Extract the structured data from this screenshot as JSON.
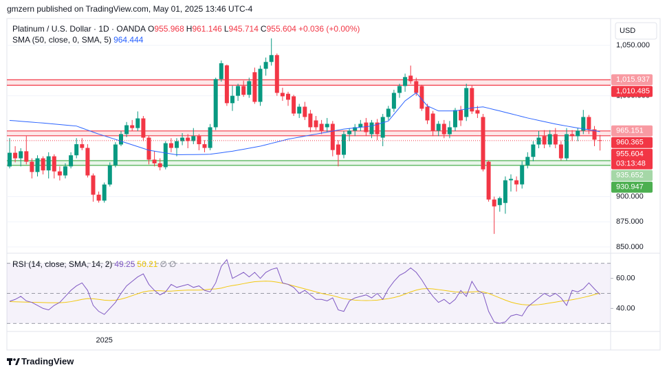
{
  "header": "gmzern published on TradingView.com, May 01, 2025 13:46 UTC-4",
  "brand": "TradingView",
  "chart_data": [
    {
      "type": "candlestick",
      "title": "Platinum / U.S. Dollar · 1D · OANDA",
      "ohlc_keys": [
        "O",
        "H",
        "L",
        "C"
      ],
      "change": "+0.036 (+0.00%)",
      "currency": "USD",
      "countdown": "03:13:48",
      "up_color": "#089981",
      "down_color": "#f23645",
      "categories": [
        null,
        null,
        null,
        null,
        null,
        null,
        null,
        null,
        null,
        null,
        null,
        null,
        null,
        null,
        null,
        null,
        null,
        "2025",
        null,
        null,
        null,
        null,
        null,
        null,
        null,
        null,
        null,
        null,
        null,
        null,
        null,
        null,
        null,
        null,
        null,
        null,
        null,
        null,
        null,
        null,
        null,
        null,
        null,
        null,
        null,
        null,
        null,
        null,
        null,
        null,
        null,
        null,
        null,
        null,
        null,
        null,
        null,
        null,
        null,
        null,
        null,
        null,
        null,
        null,
        null,
        null,
        null,
        null,
        null,
        null,
        null,
        null,
        null,
        null,
        null,
        null,
        null,
        null,
        null,
        null,
        null,
        null,
        null,
        null,
        null,
        null,
        null,
        null,
        null,
        null,
        null,
        null,
        null,
        null,
        null,
        null,
        null,
        null,
        null,
        null,
        null,
        null,
        null,
        null,
        null,
        null,
        null
      ],
      "open": [
        929.9,
        943.5,
        938,
        945,
        934.6,
        924.4,
        938,
        926,
        940,
        925,
        921,
        930,
        941,
        952,
        948.3,
        921,
        901.9,
        896,
        912,
        931,
        951.7,
        962,
        970.8,
        968,
        977.6,
        958.5,
        936.7,
        933,
        929.2,
        953,
        948.3,
        955,
        958.5,
        955.1,
        960,
        952,
        948.3,
        968.8,
        1016.6,
        1030.2,
        992.7,
        1000,
        1009.7,
        1001,
        1023.4,
        994,
        1026.8,
        1033.6,
        1040.4,
        1002.9,
        1002,
        999.5,
        982.4,
        989.2,
        982.4,
        975.6,
        972.2,
        968.8,
        972.2,
        951.7,
        941.5,
        961.9,
        965.4,
        968.8,
        973.5,
        961.9,
        973.5,
        958.5,
        979,
        987.2,
        1002.9,
        1009.7,
        1020,
        1014.5,
        1009.7,
        989.2,
        982.4,
        965.4,
        972.2,
        961.9,
        968.8,
        985.8,
        979,
        1007.7,
        985.8,
        979,
        934.6,
        897.1,
        891.6,
        893.7,
        916.2,
        916.2,
        912.1,
        931.2,
        939.4,
        951.7,
        959.9,
        951.7,
        961.9,
        951.7,
        938,
        961.9,
        959.9,
        965.4,
        979,
        966.7,
        955.968
      ],
      "high": [
        958,
        950,
        948,
        960,
        938,
        941,
        940,
        944,
        942,
        930,
        933,
        944,
        958,
        958,
        952,
        923,
        905,
        914,
        934,
        954,
        965,
        974,
        976,
        984.5,
        980,
        960,
        945,
        938,
        955,
        958,
        958,
        963,
        962,
        968,
        962,
        956,
        972,
        1018,
        1035,
        1031,
        1010,
        1012,
        1015,
        1018,
        1028,
        1030,
        1038,
        1057,
        1042,
        1008,
        1004,
        1001,
        992,
        994,
        986,
        980,
        976,
        978,
        975,
        956,
        965,
        968,
        972,
        976,
        978,
        976,
        977,
        982,
        990,
        1006,
        1012,
        1022,
        1030,
        1018,
        1011,
        992,
        985,
        975,
        976,
        975,
        988,
        990,
        1012,
        1010,
        990,
        982,
        936,
        900,
        900,
        920,
        922,
        920,
        935,
        944,
        955,
        965,
        966,
        966,
        968,
        955,
        968,
        966,
        968,
        986,
        981,
        970,
        961.146
      ],
      "low": [
        928,
        934,
        930,
        932,
        918,
        920,
        922,
        918,
        918,
        916,
        918,
        928,
        938,
        946,
        919,
        895,
        894,
        894,
        910,
        929,
        950,
        959,
        965,
        965,
        955,
        932,
        930,
        926,
        927,
        944,
        940,
        951,
        948,
        952,
        946,
        944,
        946,
        966,
        1014,
        990,
        985,
        995,
        999,
        998,
        992,
        990,
        1020,
        1030,
        1000,
        995,
        990,
        980,
        978,
        976,
        964,
        966,
        962,
        964,
        940,
        930,
        938,
        955,
        960,
        965,
        960,
        958,
        956,
        950,
        976,
        984,
        998,
        1004,
        1012,
        1000,
        985,
        972,
        960,
        960,
        958,
        958,
        965,
        970,
        975,
        982,
        978,
        925,
        895,
        863,
        885,
        883,
        905,
        905,
        908,
        928,
        935,
        948,
        948,
        949,
        948,
        936,
        936,
        955,
        955,
        962,
        962,
        950,
        945.714
      ],
      "close": [
        943.5,
        938,
        945,
        934.6,
        924.4,
        938,
        926,
        940,
        925,
        921,
        930,
        941,
        952,
        948.3,
        921,
        901.9,
        896,
        912,
        931,
        951.7,
        962,
        970.8,
        968,
        977.6,
        958.5,
        936.7,
        933,
        929.2,
        953,
        948.3,
        955,
        958.5,
        955.1,
        960,
        952,
        948.3,
        968.8,
        1016.6,
        1032.3,
        992.7,
        1000,
        1009.7,
        1001,
        1014.5,
        994,
        1026.8,
        1033.6,
        1040.4,
        1002.9,
        999.5,
        996.1,
        982.4,
        989.2,
        979,
        968.8,
        968.8,
        965.4,
        972.2,
        946.2,
        941.5,
        961.9,
        965.4,
        968.8,
        972.2,
        964,
        973.5,
        961.9,
        979,
        987.2,
        1002.9,
        1009.7,
        1018.6,
        1014.5,
        1002.9,
        987.2,
        975.6,
        965.4,
        972.2,
        961.9,
        968.8,
        985.8,
        975.6,
        1007.7,
        984.5,
        982.4,
        927,
        897.1,
        890.3,
        898.5,
        916.2,
        917.6,
        912.1,
        931.2,
        939.4,
        951.7,
        958.5,
        951.7,
        961.9,
        951.7,
        938,
        961.9,
        959.9,
        965.4,
        979,
        966.7,
        956.5,
        955.604
      ],
      "series": [
        {
          "name": "SMA (50, close, 0, SMA, 5)",
          "color": "#2962ff",
          "values": [
            975.6,
            975.2,
            974.7,
            974.3,
            973.9,
            973.4,
            973.0,
            972.5,
            972.0,
            971.5,
            971.0,
            970.5,
            970.0,
            968.0,
            966.0,
            964.0,
            962.0,
            960.3,
            958.5,
            956.8,
            955.0,
            953.2,
            951.4,
            949.6,
            947.8,
            946.0,
            945.1,
            944.2,
            943.3,
            942.4,
            941.5,
            941.6,
            941.7,
            941.7,
            941.8,
            941.9,
            942.0,
            942.8,
            943.5,
            944.3,
            945.0,
            946.0,
            947.0,
            948.0,
            949.0,
            950.0,
            951.4,
            952.8,
            954.2,
            955.6,
            957.0,
            958.0,
            959.0,
            960.0,
            961.0,
            962.0,
            963.0,
            964.0,
            965.0,
            966.0,
            967.0,
            967.6,
            968.2,
            968.8,
            969.4,
            970.0,
            971.7,
            973.3,
            975.0,
            981.7,
            988.3,
            995.0,
            999.0,
            1003.0,
            996.5,
            990.0,
            987.5,
            985.0,
            985.0,
            985.0,
            985.0,
            986.0,
            987.0,
            988.0,
            988.5,
            989.0,
            987.7,
            986.3,
            985.0,
            983.6,
            982.2,
            980.8,
            979.4,
            978.0,
            976.8,
            975.6,
            974.4,
            973.2,
            972.0,
            971.0,
            970.0,
            969.0,
            968.1,
            967.2,
            966.3,
            965.4,
            964.444
          ]
        }
      ],
      "zones": [
        {
          "top": {
            "value": 1015.937,
            "label": "1,015.937"
          },
          "bottom": {
            "value": 1010.485,
            "label": "1,010.485"
          },
          "color": "#f23645"
        },
        {
          "top": 965.151,
          "bottom": 960.365,
          "color": "#f23645"
        },
        {
          "top": 935.652,
          "bottom": 930.947,
          "color": "#4caf50"
        }
      ],
      "ylim": [
        844.5,
        1076
      ],
      "yticks": [
        {
          "value": 1050,
          "label": "1,050.000"
        },
        {
          "value": 1000,
          "label": "1,000.000"
        },
        {
          "value": 900,
          "label": "900.000"
        },
        {
          "value": 875,
          "label": "875.000"
        },
        {
          "value": 850,
          "label": "850.000"
        }
      ],
      "grid": true
    },
    {
      "type": "line",
      "title": "RSI (14, close, SMA, 14, 2)",
      "extras": [
        "∅",
        "∅"
      ],
      "series": [
        {
          "color": "#7e57c2",
          "values": [
            44.7,
            46,
            48,
            45,
            44,
            42,
            40,
            39,
            42,
            44,
            48,
            52,
            55,
            57,
            52,
            42,
            38,
            36,
            40,
            44,
            50,
            55,
            58,
            61,
            63,
            56,
            52,
            49,
            51,
            56,
            54,
            55,
            56,
            54,
            55,
            52,
            51,
            57,
            68,
            72.5,
            60,
            62,
            64,
            61,
            64,
            60,
            64,
            66,
            67,
            57,
            56,
            54,
            50,
            52,
            49,
            46,
            46,
            45,
            47,
            39,
            38,
            45,
            47,
            48,
            49,
            47,
            50,
            46,
            53,
            58,
            62,
            64,
            67,
            64,
            59,
            53,
            48,
            44,
            46,
            43,
            46,
            52,
            48,
            58,
            52,
            50,
            38,
            31,
            30,
            31,
            35,
            36,
            35,
            41,
            44,
            47,
            50,
            48,
            50,
            47,
            42,
            52,
            51,
            53,
            57,
            53,
            49.25
          ]
        },
        {
          "color": "#f2c80f",
          "values": [
            44.5,
            44.4,
            44.3,
            44.2,
            44.1,
            44.0,
            43.9,
            43.8,
            43.8,
            43.8,
            44.0,
            44.5,
            45.2,
            46.0,
            46.5,
            46.4,
            46.0,
            45.5,
            45.3,
            45.5,
            46.2,
            47.2,
            48.5,
            49.8,
            51.0,
            51.6,
            51.8,
            51.8,
            51.5,
            51.5,
            51.8,
            52.0,
            52.2,
            52.2,
            52.2,
            52.4,
            52.8,
            53.0,
            53.5,
            54.5,
            55.2,
            55.8,
            56.5,
            57.2,
            57.8,
            58.0,
            58.2,
            58.0,
            57.5,
            56.8,
            56.0,
            55.0,
            54.0,
            53.0,
            52.0,
            51.0,
            50.0,
            49.2,
            48.5,
            47.5,
            46.5,
            46.0,
            45.5,
            45.3,
            45.2,
            45.3,
            45.5,
            46.0,
            46.5,
            47.2,
            48.2,
            49.5,
            51.0,
            52.2,
            53.0,
            53.2,
            53.0,
            52.5,
            52.0,
            51.5,
            51.0,
            50.8,
            50.8,
            51.0,
            51.2,
            51.0,
            50.0,
            48.5,
            47.0,
            45.5,
            44.2,
            43.2,
            42.6,
            42.3,
            42.3,
            42.5,
            43.0,
            43.6,
            44.2,
            44.8,
            45.2,
            45.8,
            46.5,
            47.3,
            48.2,
            49.2,
            50.21
          ]
        }
      ],
      "bands": [
        70,
        50,
        30
      ],
      "band_color": "#7e57c2",
      "ylim": [
        25.1,
        76.3
      ],
      "yticks": [
        {
          "value": 60,
          "label": "60.00"
        },
        {
          "value": 40,
          "label": "40.00"
        }
      ]
    }
  ]
}
